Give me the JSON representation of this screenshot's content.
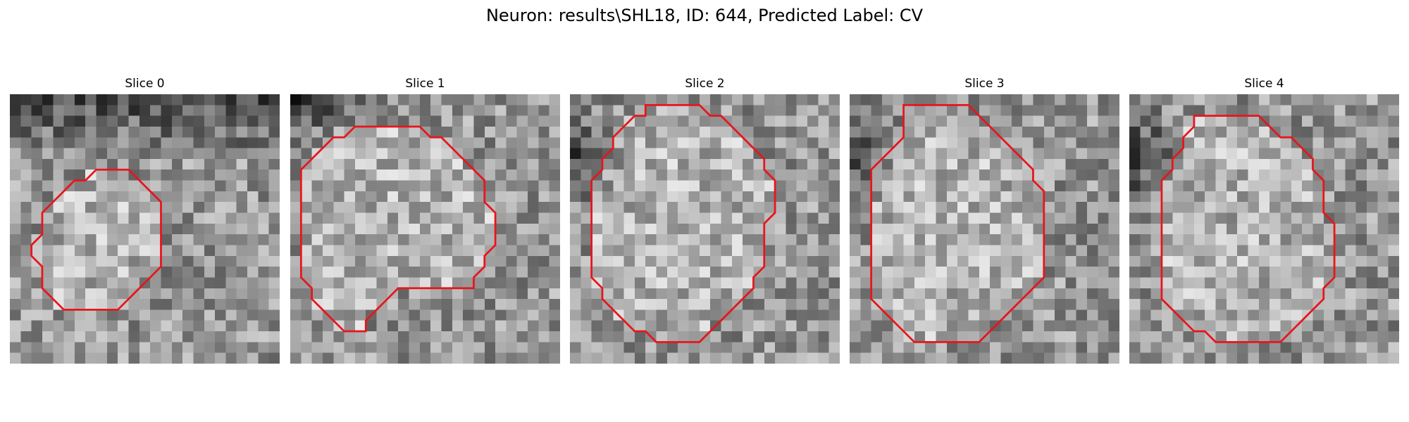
{
  "figure": {
    "title": "Neuron: results\\SHL18, ID: 644, Predicted Label: CV"
  },
  "overlay_color": "#e8151b",
  "panels": [
    {
      "title": "Slice 0",
      "seed": 11,
      "dark_corner": "top",
      "contour": [
        [
          10,
          7
        ],
        [
          11,
          7
        ],
        [
          12,
          8
        ],
        [
          13,
          9
        ],
        [
          14,
          10
        ],
        [
          14,
          11
        ],
        [
          14,
          12
        ],
        [
          14,
          13
        ],
        [
          14,
          14
        ],
        [
          14,
          15
        ],
        [
          14,
          16
        ],
        [
          13,
          17
        ],
        [
          12,
          18
        ],
        [
          11,
          19
        ],
        [
          10,
          20
        ],
        [
          9,
          20
        ],
        [
          8,
          20
        ],
        [
          7,
          20
        ],
        [
          6,
          20
        ],
        [
          5,
          20
        ],
        [
          4,
          19
        ],
        [
          3,
          18
        ],
        [
          3,
          17
        ],
        [
          3,
          16
        ],
        [
          2,
          15
        ],
        [
          2,
          14
        ],
        [
          3,
          13
        ],
        [
          3,
          12
        ],
        [
          3,
          11
        ],
        [
          4,
          10
        ],
        [
          5,
          9
        ],
        [
          6,
          8
        ],
        [
          7,
          8
        ],
        [
          8,
          7
        ],
        [
          9,
          7
        ]
      ]
    },
    {
      "title": "Slice 1",
      "seed": 23,
      "dark_corner": "top-left",
      "contour": [
        [
          7,
          3
        ],
        [
          8,
          3
        ],
        [
          9,
          3
        ],
        [
          10,
          3
        ],
        [
          11,
          3
        ],
        [
          12,
          3
        ],
        [
          13,
          4
        ],
        [
          14,
          4
        ],
        [
          15,
          5
        ],
        [
          16,
          6
        ],
        [
          17,
          7
        ],
        [
          18,
          8
        ],
        [
          18,
          9
        ],
        [
          18,
          10
        ],
        [
          19,
          11
        ],
        [
          19,
          12
        ],
        [
          19,
          13
        ],
        [
          19,
          14
        ],
        [
          18,
          15
        ],
        [
          18,
          16
        ],
        [
          17,
          17
        ],
        [
          17,
          18
        ],
        [
          16,
          18
        ],
        [
          15,
          18
        ],
        [
          14,
          18
        ],
        [
          13,
          18
        ],
        [
          12,
          18
        ],
        [
          11,
          18
        ],
        [
          10,
          18
        ],
        [
          9,
          19
        ],
        [
          8,
          20
        ],
        [
          7,
          21
        ],
        [
          7,
          22
        ],
        [
          6,
          22
        ],
        [
          5,
          22
        ],
        [
          4,
          21
        ],
        [
          3,
          20
        ],
        [
          2,
          19
        ],
        [
          2,
          18
        ],
        [
          1,
          17
        ],
        [
          1,
          16
        ],
        [
          1,
          15
        ],
        [
          1,
          14
        ],
        [
          1,
          13
        ],
        [
          1,
          12
        ],
        [
          1,
          11
        ],
        [
          1,
          10
        ],
        [
          1,
          9
        ],
        [
          1,
          8
        ],
        [
          1,
          7
        ],
        [
          2,
          6
        ],
        [
          3,
          5
        ],
        [
          4,
          4
        ],
        [
          5,
          4
        ],
        [
          6,
          3
        ]
      ]
    },
    {
      "title": "Slice 2",
      "seed": 37,
      "dark_corner": "left",
      "contour": [
        [
          7,
          1
        ],
        [
          8,
          1
        ],
        [
          9,
          1
        ],
        [
          10,
          1
        ],
        [
          11,
          1
        ],
        [
          12,
          1
        ],
        [
          13,
          2
        ],
        [
          14,
          2
        ],
        [
          15,
          3
        ],
        [
          16,
          4
        ],
        [
          17,
          5
        ],
        [
          18,
          6
        ],
        [
          18,
          7
        ],
        [
          19,
          8
        ],
        [
          19,
          9
        ],
        [
          19,
          10
        ],
        [
          19,
          11
        ],
        [
          18,
          12
        ],
        [
          18,
          13
        ],
        [
          18,
          14
        ],
        [
          18,
          15
        ],
        [
          18,
          16
        ],
        [
          17,
          17
        ],
        [
          17,
          18
        ],
        [
          16,
          19
        ],
        [
          15,
          20
        ],
        [
          14,
          21
        ],
        [
          13,
          22
        ],
        [
          12,
          23
        ],
        [
          11,
          23
        ],
        [
          10,
          23
        ],
        [
          9,
          23
        ],
        [
          8,
          23
        ],
        [
          7,
          22
        ],
        [
          6,
          22
        ],
        [
          5,
          21
        ],
        [
          4,
          20
        ],
        [
          3,
          19
        ],
        [
          3,
          18
        ],
        [
          2,
          17
        ],
        [
          2,
          16
        ],
        [
          2,
          15
        ],
        [
          2,
          14
        ],
        [
          2,
          13
        ],
        [
          2,
          12
        ],
        [
          2,
          11
        ],
        [
          2,
          10
        ],
        [
          2,
          9
        ],
        [
          2,
          8
        ],
        [
          3,
          7
        ],
        [
          3,
          6
        ],
        [
          4,
          5
        ],
        [
          4,
          4
        ],
        [
          5,
          3
        ],
        [
          6,
          2
        ],
        [
          7,
          2
        ]
      ]
    },
    {
      "title": "Slice 3",
      "seed": 53,
      "dark_corner": "left",
      "contour": [
        [
          5,
          1
        ],
        [
          6,
          1
        ],
        [
          7,
          1
        ],
        [
          8,
          1
        ],
        [
          9,
          1
        ],
        [
          10,
          1
        ],
        [
          11,
          1
        ],
        [
          12,
          2
        ],
        [
          13,
          3
        ],
        [
          14,
          4
        ],
        [
          15,
          5
        ],
        [
          16,
          6
        ],
        [
          17,
          7
        ],
        [
          17,
          8
        ],
        [
          18,
          9
        ],
        [
          18,
          10
        ],
        [
          18,
          11
        ],
        [
          18,
          12
        ],
        [
          18,
          13
        ],
        [
          18,
          14
        ],
        [
          18,
          15
        ],
        [
          18,
          16
        ],
        [
          18,
          17
        ],
        [
          17,
          18
        ],
        [
          16,
          19
        ],
        [
          15,
          20
        ],
        [
          14,
          21
        ],
        [
          13,
          22
        ],
        [
          12,
          23
        ],
        [
          11,
          23
        ],
        [
          10,
          23
        ],
        [
          9,
          23
        ],
        [
          8,
          23
        ],
        [
          7,
          23
        ],
        [
          6,
          23
        ],
        [
          5,
          22
        ],
        [
          4,
          21
        ],
        [
          3,
          20
        ],
        [
          2,
          19
        ],
        [
          2,
          18
        ],
        [
          2,
          17
        ],
        [
          2,
          16
        ],
        [
          2,
          15
        ],
        [
          2,
          14
        ],
        [
          2,
          13
        ],
        [
          2,
          12
        ],
        [
          2,
          11
        ],
        [
          2,
          10
        ],
        [
          2,
          9
        ],
        [
          2,
          8
        ],
        [
          2,
          7
        ],
        [
          3,
          6
        ],
        [
          4,
          5
        ],
        [
          5,
          4
        ],
        [
          5,
          3
        ],
        [
          5,
          2
        ]
      ]
    },
    {
      "title": "Slice 4",
      "seed": 71,
      "dark_corner": "left",
      "contour": [
        [
          6,
          2
        ],
        [
          7,
          2
        ],
        [
          8,
          2
        ],
        [
          9,
          2
        ],
        [
          10,
          2
        ],
        [
          11,
          2
        ],
        [
          12,
          2
        ],
        [
          13,
          3
        ],
        [
          14,
          4
        ],
        [
          15,
          4
        ],
        [
          16,
          5
        ],
        [
          17,
          6
        ],
        [
          17,
          7
        ],
        [
          18,
          8
        ],
        [
          18,
          9
        ],
        [
          18,
          10
        ],
        [
          18,
          11
        ],
        [
          19,
          12
        ],
        [
          19,
          13
        ],
        [
          19,
          14
        ],
        [
          19,
          15
        ],
        [
          19,
          16
        ],
        [
          19,
          17
        ],
        [
          18,
          18
        ],
        [
          18,
          19
        ],
        [
          17,
          20
        ],
        [
          16,
          21
        ],
        [
          15,
          22
        ],
        [
          14,
          23
        ],
        [
          13,
          23
        ],
        [
          12,
          23
        ],
        [
          11,
          23
        ],
        [
          10,
          23
        ],
        [
          9,
          23
        ],
        [
          8,
          23
        ],
        [
          7,
          22
        ],
        [
          6,
          22
        ],
        [
          5,
          21
        ],
        [
          4,
          20
        ],
        [
          3,
          19
        ],
        [
          3,
          18
        ],
        [
          3,
          17
        ],
        [
          3,
          16
        ],
        [
          3,
          15
        ],
        [
          3,
          14
        ],
        [
          3,
          13
        ],
        [
          3,
          12
        ],
        [
          3,
          11
        ],
        [
          3,
          10
        ],
        [
          3,
          9
        ],
        [
          3,
          8
        ],
        [
          4,
          7
        ],
        [
          4,
          6
        ],
        [
          5,
          5
        ],
        [
          5,
          4
        ],
        [
          6,
          3
        ]
      ]
    }
  ]
}
